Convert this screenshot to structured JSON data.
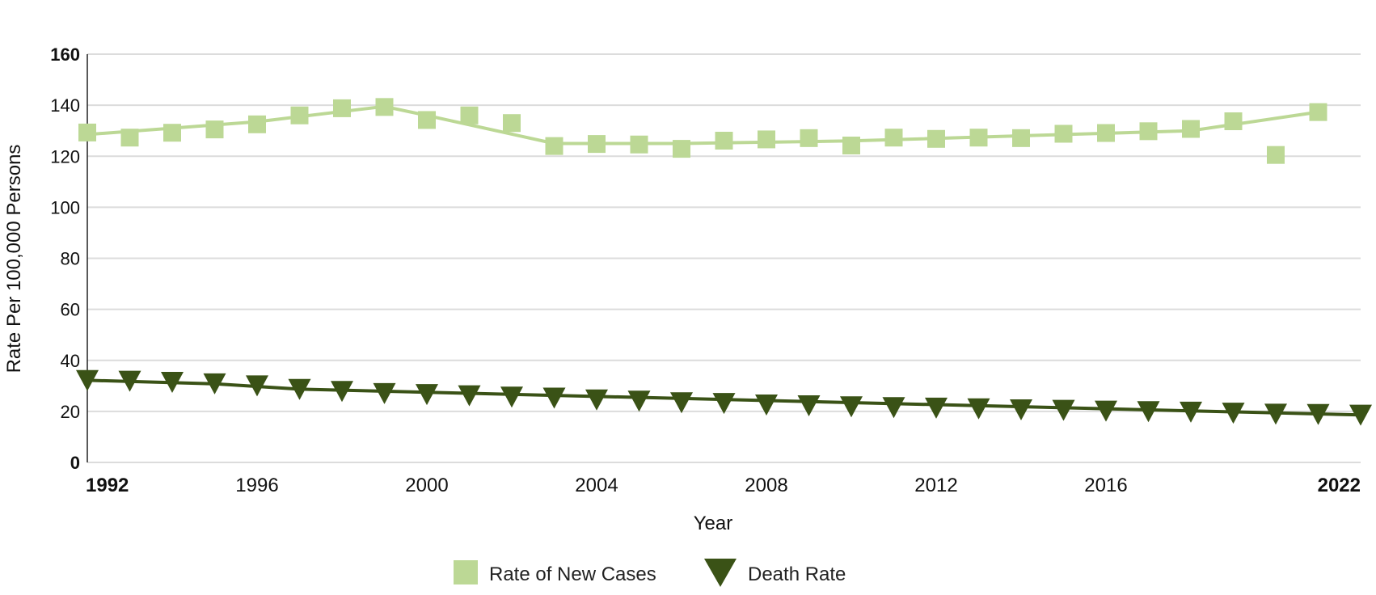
{
  "chart_data": {
    "type": "line",
    "xlabel": "Year",
    "ylabel": "Rate Per 100,000 Persons",
    "ylim": [
      0,
      160
    ],
    "xlim": [
      1992,
      2022
    ],
    "y_ticks": [
      0,
      20,
      40,
      60,
      80,
      100,
      120,
      140,
      160
    ],
    "y_ticks_bold": [
      0,
      160
    ],
    "x_tick_labels": [
      {
        "value": 1992,
        "label": "1992",
        "bold": true
      },
      {
        "value": 1996,
        "label": "1996",
        "bold": false
      },
      {
        "value": 2000,
        "label": "2000",
        "bold": false
      },
      {
        "value": 2004,
        "label": "2004",
        "bold": false
      },
      {
        "value": 2008,
        "label": "2008",
        "bold": false
      },
      {
        "value": 2012,
        "label": "2012",
        "bold": false
      },
      {
        "value": 2016,
        "label": "2016",
        "bold": false
      },
      {
        "value": 2022,
        "label": "2022",
        "bold": true
      }
    ],
    "grid": true,
    "legend_position": "bottom",
    "series": [
      {
        "name": "Rate of New Cases",
        "marker": "square",
        "color": "#bcd895",
        "points": [
          {
            "x": 1992,
            "y": 129.3
          },
          {
            "x": 1993,
            "y": 127.3
          },
          {
            "x": 1994,
            "y": 129.2
          },
          {
            "x": 1995,
            "y": 130.5
          },
          {
            "x": 1996,
            "y": 132.5
          },
          {
            "x": 1997,
            "y": 136.0
          },
          {
            "x": 1998,
            "y": 138.8
          },
          {
            "x": 1999,
            "y": 139.3
          },
          {
            "x": 2000,
            "y": 134.2
          },
          {
            "x": 2001,
            "y": 136.0
          },
          {
            "x": 2002,
            "y": 133.0
          },
          {
            "x": 2003,
            "y": 124.0
          },
          {
            "x": 2004,
            "y": 124.8
          },
          {
            "x": 2005,
            "y": 124.6
          },
          {
            "x": 2006,
            "y": 122.9
          },
          {
            "x": 2007,
            "y": 126.1
          },
          {
            "x": 2008,
            "y": 126.6
          },
          {
            "x": 2009,
            "y": 127.1
          },
          {
            "x": 2010,
            "y": 124.2
          },
          {
            "x": 2011,
            "y": 127.3
          },
          {
            "x": 2012,
            "y": 126.8
          },
          {
            "x": 2013,
            "y": 127.3
          },
          {
            "x": 2014,
            "y": 127.1
          },
          {
            "x": 2015,
            "y": 128.8
          },
          {
            "x": 2016,
            "y": 129.1
          },
          {
            "x": 2017,
            "y": 129.8
          },
          {
            "x": 2018,
            "y": 130.7
          },
          {
            "x": 2019,
            "y": 133.7
          },
          {
            "x": 2020,
            "y": 120.5
          },
          {
            "x": 2021,
            "y": 137.3
          }
        ],
        "trend": [
          {
            "x": 1992,
            "y": 128.5
          },
          {
            "x": 1996,
            "y": 133.5
          },
          {
            "x": 1999,
            "y": 139.5
          },
          {
            "x": 2000,
            "y": 136.0
          },
          {
            "x": 2003,
            "y": 125.0
          },
          {
            "x": 2006,
            "y": 125.0
          },
          {
            "x": 2010,
            "y": 126.0
          },
          {
            "x": 2018,
            "y": 130.0
          },
          {
            "x": 2021,
            "y": 137.3
          }
        ]
      },
      {
        "name": "Death Rate",
        "marker": "triangle-down",
        "color": "#3a5216",
        "points": [
          {
            "x": 1992,
            "y": 32.4
          },
          {
            "x": 1993,
            "y": 32.1
          },
          {
            "x": 1994,
            "y": 31.7
          },
          {
            "x": 1995,
            "y": 31.1
          },
          {
            "x": 1996,
            "y": 30.3
          },
          {
            "x": 1997,
            "y": 28.9
          },
          {
            "x": 1998,
            "y": 28.1
          },
          {
            "x": 1999,
            "y": 27.3
          },
          {
            "x": 2000,
            "y": 26.9
          },
          {
            "x": 2001,
            "y": 26.4
          },
          {
            "x": 2002,
            "y": 25.9
          },
          {
            "x": 2003,
            "y": 25.5
          },
          {
            "x": 2004,
            "y": 24.8
          },
          {
            "x": 2005,
            "y": 24.3
          },
          {
            "x": 2006,
            "y": 23.7
          },
          {
            "x": 2007,
            "y": 23.4
          },
          {
            "x": 2008,
            "y": 22.8
          },
          {
            "x": 2009,
            "y": 22.5
          },
          {
            "x": 2010,
            "y": 22.1
          },
          {
            "x": 2011,
            "y": 21.8
          },
          {
            "x": 2012,
            "y": 21.6
          },
          {
            "x": 2013,
            "y": 21.3
          },
          {
            "x": 2014,
            "y": 20.9
          },
          {
            "x": 2015,
            "y": 20.7
          },
          {
            "x": 2016,
            "y": 20.4
          },
          {
            "x": 2017,
            "y": 20.2
          },
          {
            "x": 2018,
            "y": 20.0
          },
          {
            "x": 2019,
            "y": 19.6
          },
          {
            "x": 2020,
            "y": 19.2
          },
          {
            "x": 2021,
            "y": 19.1
          },
          {
            "x": 2022,
            "y": 18.8
          }
        ],
        "trend": [
          {
            "x": 1992,
            "y": 32.2
          },
          {
            "x": 1995,
            "y": 30.8
          },
          {
            "x": 1997,
            "y": 28.7
          },
          {
            "x": 2022,
            "y": 18.6
          }
        ]
      }
    ]
  }
}
